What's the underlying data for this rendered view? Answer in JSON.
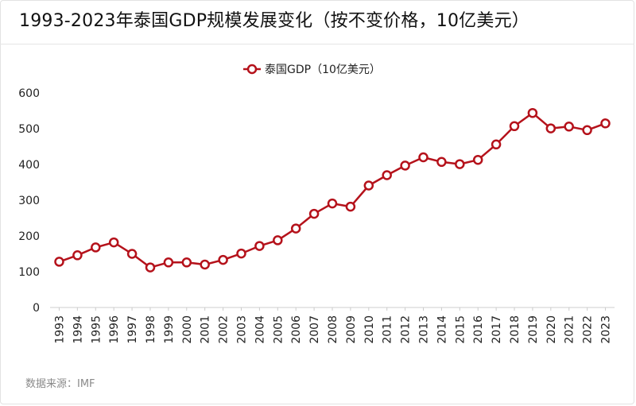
{
  "header": {
    "title": "1993-2023年泰国GDP规模发展变化（按不变价格，10亿美元）"
  },
  "footer": {
    "source": "数据来源：IMF"
  },
  "colors": {
    "series": "#b5121b",
    "grid_axis": "#cccccc",
    "marker_fill": "#ffffff"
  },
  "chart_data": {
    "type": "line",
    "title": "1993-2023年泰国GDP规模发展变化（按不变价格，10亿美元）",
    "xlabel": "",
    "ylabel": "",
    "ylim": [
      0,
      600
    ],
    "yticks": [
      0,
      100,
      200,
      300,
      400,
      500,
      600
    ],
    "grid": false,
    "legend_position": "top-center",
    "categories": [
      "1993",
      "1994",
      "1995",
      "1996",
      "1997",
      "1998",
      "1999",
      "2000",
      "2001",
      "2002",
      "2003",
      "2004",
      "2005",
      "2006",
      "2007",
      "2008",
      "2009",
      "2010",
      "2011",
      "2012",
      "2013",
      "2014",
      "2015",
      "2016",
      "2017",
      "2018",
      "2019",
      "2020",
      "2021",
      "2022",
      "2023"
    ],
    "series": [
      {
        "name": "泰国GDP（10亿美元）",
        "values": [
          128,
          146,
          168,
          182,
          150,
          112,
          126,
          126,
          120,
          133,
          151,
          172,
          188,
          221,
          262,
          291,
          282,
          341,
          370,
          397,
          420,
          407,
          401,
          413,
          456,
          507,
          544,
          501,
          506,
          496,
          515
        ]
      }
    ]
  }
}
